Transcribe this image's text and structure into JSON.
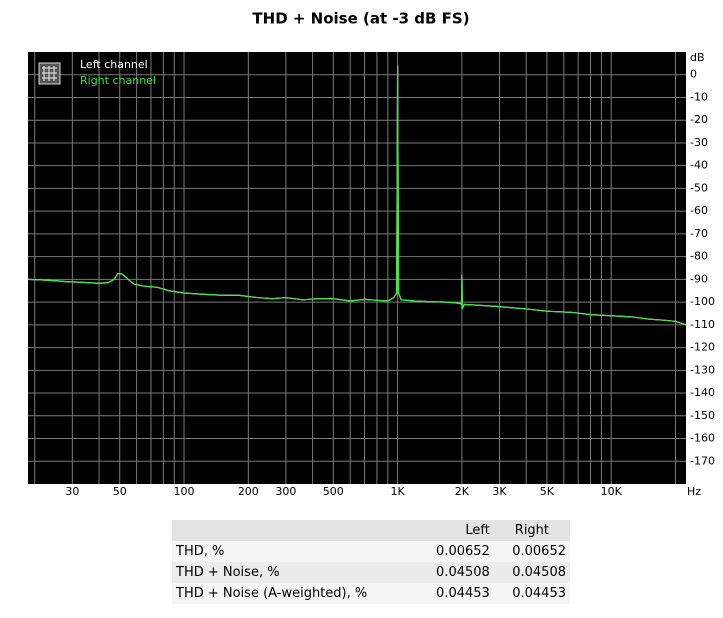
{
  "chart_data": {
    "type": "line",
    "title": "THD + Noise (at -3 dB FS)",
    "x_label": "Hz",
    "y_label": "dB",
    "xscale": "log",
    "x": [
      18.6,
      22,
      25,
      28,
      32,
      36,
      40,
      44,
      47,
      49,
      51,
      54,
      58,
      65,
      75,
      85,
      100,
      120,
      150,
      180,
      220,
      260,
      300,
      360,
      420,
      500,
      600,
      700,
      800,
      900,
      960,
      990,
      1000,
      1010,
      1040,
      1200,
      1400,
      1700,
      1950,
      1990,
      2000,
      2010,
      2050,
      2500,
      3000,
      4000,
      5000,
      6500,
      8000,
      10000,
      12500,
      15000,
      18000,
      20000,
      22400
    ],
    "series": [
      {
        "name": "Left channel",
        "color": "#ffffff",
        "values": [
          -90,
          -90.3,
          -90.6,
          -91,
          -91.2,
          -91.5,
          -91.7,
          -91.5,
          -90,
          -87.5,
          -87.5,
          -89.5,
          -92,
          -93,
          -93.5,
          -95,
          -96,
          -96.5,
          -97,
          -97,
          -98,
          -98.5,
          -98,
          -99,
          -98.5,
          -98.5,
          -99.5,
          -98.8,
          -99.2,
          -99.5,
          -98,
          -96,
          4,
          -96,
          -99,
          -99.5,
          -99.8,
          -100,
          -100.5,
          -101,
          -88,
          -103,
          -101,
          -101.5,
          -102,
          -103,
          -104,
          -104.5,
          -105.5,
          -106,
          -106.5,
          -107.5,
          -108,
          -108.5,
          -110
        ]
      },
      {
        "name": "Right channel",
        "color": "#3ce63c",
        "values": [
          -90,
          -90.3,
          -90.6,
          -91,
          -91.2,
          -91.5,
          -91.7,
          -91.5,
          -90,
          -87.5,
          -87.5,
          -89.5,
          -92,
          -93,
          -93.5,
          -95,
          -96,
          -96.5,
          -97,
          -97,
          -98,
          -98.5,
          -98,
          -99,
          -98.5,
          -98.5,
          -99.5,
          -98.8,
          -99.2,
          -99.5,
          -98,
          -96,
          4,
          -96,
          -99,
          -99.5,
          -99.8,
          -100,
          -100.5,
          -101,
          -88,
          -103,
          -101,
          -101.5,
          -102,
          -103,
          -104,
          -104.5,
          -105.5,
          -106,
          -106.5,
          -107.5,
          -108,
          -108.5,
          -110
        ]
      }
    ],
    "xlim": [
      18.6,
      22400
    ],
    "xticks": [
      30,
      50,
      100,
      200,
      300,
      500,
      {
        "value": 1000,
        "label": "1K"
      },
      {
        "value": 2000,
        "label": "2K"
      },
      {
        "value": 3000,
        "label": "3K"
      },
      {
        "value": 5000,
        "label": "5K"
      },
      {
        "value": 10000,
        "label": "10K"
      }
    ],
    "xminor": [
      20,
      40,
      60,
      70,
      80,
      90,
      400,
      600,
      700,
      800,
      900,
      4000,
      6000,
      7000,
      8000,
      9000,
      20000
    ],
    "ylim": [
      -180,
      10
    ],
    "yticks": [
      0,
      -10,
      -20,
      -30,
      -40,
      -50,
      -60,
      -70,
      -80,
      -90,
      -100,
      -110,
      -120,
      -130,
      -140,
      -150,
      -160,
      -170
    ],
    "grid": true,
    "legend": "upper left"
  },
  "table": {
    "columns": [
      "Left",
      "Right"
    ],
    "rows": [
      [
        "THD, %",
        "0.00652",
        "0.00652"
      ],
      [
        "THD + Noise, %",
        "0.04508",
        "0.04508"
      ],
      [
        "THD + Noise (A-weighted), %",
        "0.04453",
        "0.04453"
      ]
    ]
  }
}
